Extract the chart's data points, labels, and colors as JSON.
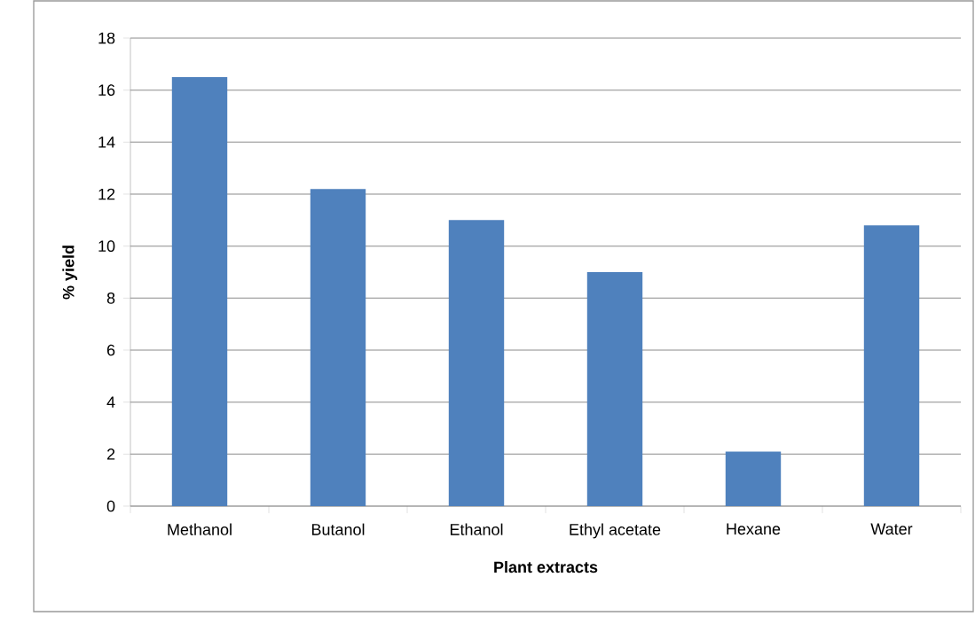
{
  "chart_data": {
    "type": "bar",
    "xlabel": "Plant extracts",
    "ylabel": "% yield",
    "categories": [
      "Methanol",
      "Butanol",
      "Ethanol",
      "Ethyl acetate",
      "Hexane",
      "Water"
    ],
    "values": [
      16.5,
      12.2,
      11.0,
      9.0,
      2.1,
      10.8
    ],
    "color": "#4f81bd",
    "ylim": [
      0,
      18
    ],
    "yticks": [
      0,
      2,
      4,
      6,
      8,
      10,
      12,
      14,
      16,
      18
    ],
    "grid": "y"
  }
}
